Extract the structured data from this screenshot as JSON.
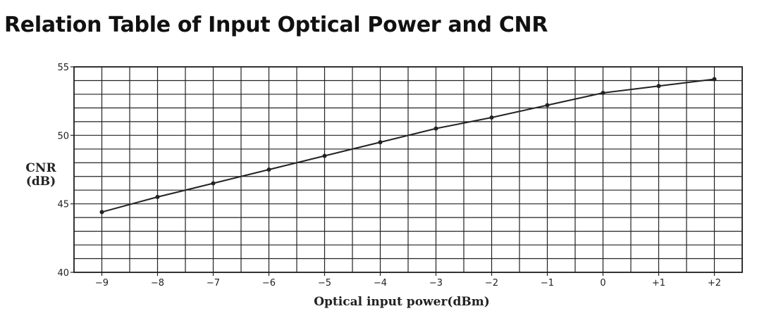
{
  "title": "Relation Table of Input Optical Power and CNR",
  "chart_data": {
    "type": "line",
    "xlabel": "Optical input power(dBm)",
    "ylabel": [
      "CNR",
      "(dB)"
    ],
    "x_ticks": [
      "−9",
      "−8",
      "−7",
      "−6",
      "−5",
      "−4",
      "−3",
      "−2",
      "−1",
      "0",
      "+1",
      "+2"
    ],
    "y_ticks": [
      "40",
      "45",
      "50",
      "55"
    ],
    "xlim": [
      -9.5,
      2.5
    ],
    "ylim": [
      40,
      55
    ],
    "grid": true,
    "series": [
      {
        "x": [
          -9,
          -8,
          -7,
          -6,
          -5,
          -4,
          -3,
          -2,
          -1,
          0,
          1,
          2
        ],
        "y": [
          44.4,
          45.5,
          46.5,
          47.5,
          48.5,
          49.5,
          50.5,
          51.3,
          52.2,
          53.1,
          53.6,
          54.1
        ]
      }
    ]
  },
  "colors": {
    "line": "#222222",
    "grid": "#222222",
    "text": "#222222"
  }
}
